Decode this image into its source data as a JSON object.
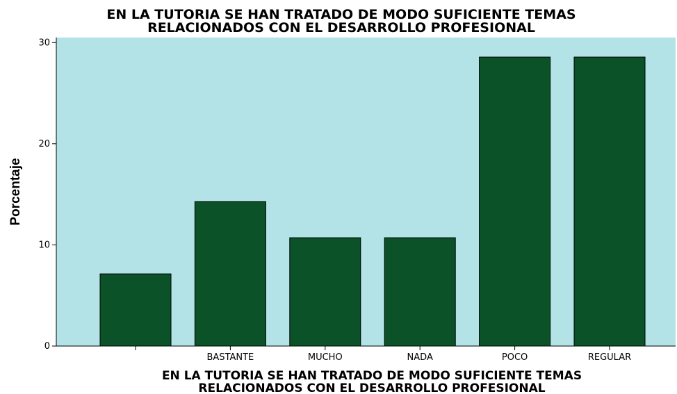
{
  "chart_data": {
    "type": "bar",
    "title_lines": [
      "EN LA TUTORIA SE HAN TRATADO DE MODO SUFICIENTE TEMAS",
      "RELACIONADOS CON EL DESARROLLO PROFESIONAL"
    ],
    "xlabel_lines": [
      "EN LA TUTORIA SE HAN TRATADO DE MODO SUFICIENTE TEMAS",
      "RELACIONADOS CON EL DESARROLLO PROFESIONAL"
    ],
    "ylabel": "Porcentaje",
    "categories": [
      "",
      "BASTANTE",
      "MUCHO",
      "NADA",
      "POCO",
      "REGULAR"
    ],
    "values": [
      7.14,
      14.29,
      10.71,
      10.71,
      28.57,
      28.57
    ],
    "ylim": [
      0,
      30.5
    ],
    "yticks": [
      0,
      10,
      20,
      30
    ],
    "grid": false,
    "legend": "none",
    "colors": {
      "plot_background": "#b3e3e6",
      "bar": "#0b5229",
      "bar_edge": "#000000"
    }
  }
}
